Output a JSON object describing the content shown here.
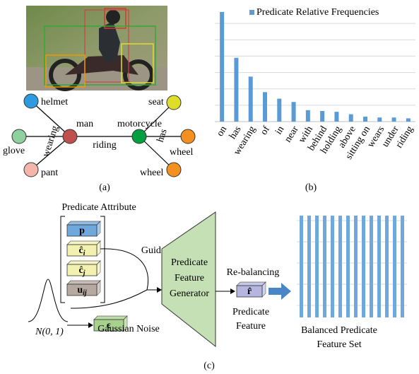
{
  "panel_a": {
    "caption": "(a)",
    "nodes": [
      "helmet",
      "man",
      "glove",
      "pant",
      "motorcycle",
      "seat",
      "wheel",
      "wheel"
    ],
    "edges": [
      "wearing",
      "riding",
      "has"
    ]
  },
  "chart_data": {
    "type": "bar",
    "caption": "(b)",
    "categories": [
      "on",
      "has",
      "wearing",
      "of",
      "in",
      "near",
      "with",
      "behind",
      "holding",
      "above",
      "sitting on",
      "wears",
      "under",
      "riding"
    ],
    "series": [
      {
        "name": "Predicate Relative Frequencies",
        "color": "#5b9bd5",
        "values": [
          6.7,
          3.9,
          2.75,
          1.8,
          1.4,
          1.2,
          0.7,
          0.65,
          0.6,
          0.45,
          0.3,
          0.25,
          0.25,
          0.2
        ]
      }
    ],
    "ylim": [
      0,
      7
    ],
    "grid": true
  },
  "panel_c": {
    "attribute_title": "Predicate Attribute",
    "attributes": [
      {
        "symbol": "p"
      },
      {
        "symbol": "ĉ",
        "sub": "i"
      },
      {
        "symbol": "ĉ",
        "sub": "j"
      },
      {
        "symbol": "u",
        "sub": "ij"
      }
    ],
    "guide": "Guide",
    "noise_symbol": "ϵ",
    "noise_dist": "N(0, 1)",
    "noise_label": "Gaussian Noise",
    "generator": [
      "Predicate",
      "Feature",
      "Generator"
    ],
    "rebalancing": "Re-balancing",
    "feature_symbol": "r̂",
    "feature_label": [
      "Predicate",
      "Feature"
    ],
    "set_label": [
      "Balanced Predicate",
      "Feature Set"
    ],
    "caption": "(c)"
  }
}
